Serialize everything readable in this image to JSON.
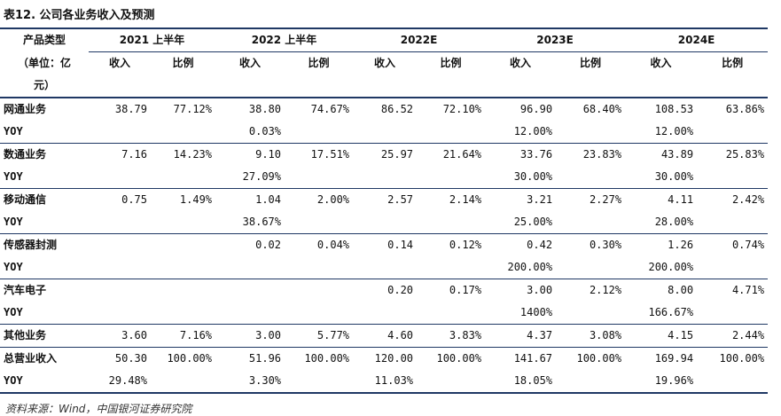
{
  "title": "表12. 公司各业务收入及预测",
  "header": {
    "category_lines": [
      "产品类型",
      "（单位：亿",
      "元）"
    ],
    "years": [
      "2021 上半年",
      "2022 上半年",
      "2022E",
      "2023E",
      "2024E"
    ],
    "revenue_label": "收入",
    "ratio_label": "比例"
  },
  "yoy_label": "YOY",
  "rows": [
    {
      "name": "网通业务",
      "values": [
        [
          "38.79",
          "77.12%"
        ],
        [
          "38.80",
          "74.67%"
        ],
        [
          "86.52",
          "72.10%"
        ],
        [
          "96.90",
          "68.40%"
        ],
        [
          "108.53",
          "63.86%"
        ]
      ],
      "yoy": [
        "",
        "0.03%",
        "",
        "12.00%",
        "12.00%"
      ]
    },
    {
      "name": "数通业务",
      "values": [
        [
          "7.16",
          "14.23%"
        ],
        [
          "9.10",
          "17.51%"
        ],
        [
          "25.97",
          "21.64%"
        ],
        [
          "33.76",
          "23.83%"
        ],
        [
          "43.89",
          "25.83%"
        ]
      ],
      "yoy": [
        "",
        "27.09%",
        "",
        "30.00%",
        "30.00%"
      ]
    },
    {
      "name": "移动通信",
      "values": [
        [
          "0.75",
          "1.49%"
        ],
        [
          "1.04",
          "2.00%"
        ],
        [
          "2.57",
          "2.14%"
        ],
        [
          "3.21",
          "2.27%"
        ],
        [
          "4.11",
          "2.42%"
        ]
      ],
      "yoy": [
        "",
        "38.67%",
        "",
        "25.00%",
        "28.00%"
      ]
    },
    {
      "name": "传感器封测",
      "values": [
        [
          "",
          ""
        ],
        [
          "0.02",
          "0.04%"
        ],
        [
          "0.14",
          "0.12%"
        ],
        [
          "0.42",
          "0.30%"
        ],
        [
          "1.26",
          "0.74%"
        ]
      ],
      "yoy": [
        "",
        "",
        "",
        "200.00%",
        "200.00%"
      ]
    },
    {
      "name": "汽车电子",
      "values": [
        [
          "",
          ""
        ],
        [
          "",
          ""
        ],
        [
          "0.20",
          "0.17%"
        ],
        [
          "3.00",
          "2.12%"
        ],
        [
          "8.00",
          "4.71%"
        ]
      ],
      "yoy": [
        "",
        "",
        "",
        "1400%",
        "166.67%"
      ]
    },
    {
      "name": "其他业务",
      "values": [
        [
          "3.60",
          "7.16%"
        ],
        [
          "3.00",
          "5.77%"
        ],
        [
          "4.60",
          "3.83%"
        ],
        [
          "4.37",
          "3.08%"
        ],
        [
          "4.15",
          "2.44%"
        ]
      ],
      "yoy": null
    },
    {
      "name": "总营业收入",
      "values": [
        [
          "50.30",
          "100.00%"
        ],
        [
          "51.96",
          "100.00%"
        ],
        [
          "120.00",
          "100.00%"
        ],
        [
          "141.67",
          "100.00%"
        ],
        [
          "169.94",
          "100.00%"
        ]
      ],
      "yoy": [
        "29.48%",
        "3.30%",
        "11.03%",
        "18.05%",
        "19.96%"
      ]
    }
  ],
  "source": "资料来源：Wind，中国银河证券研究院"
}
